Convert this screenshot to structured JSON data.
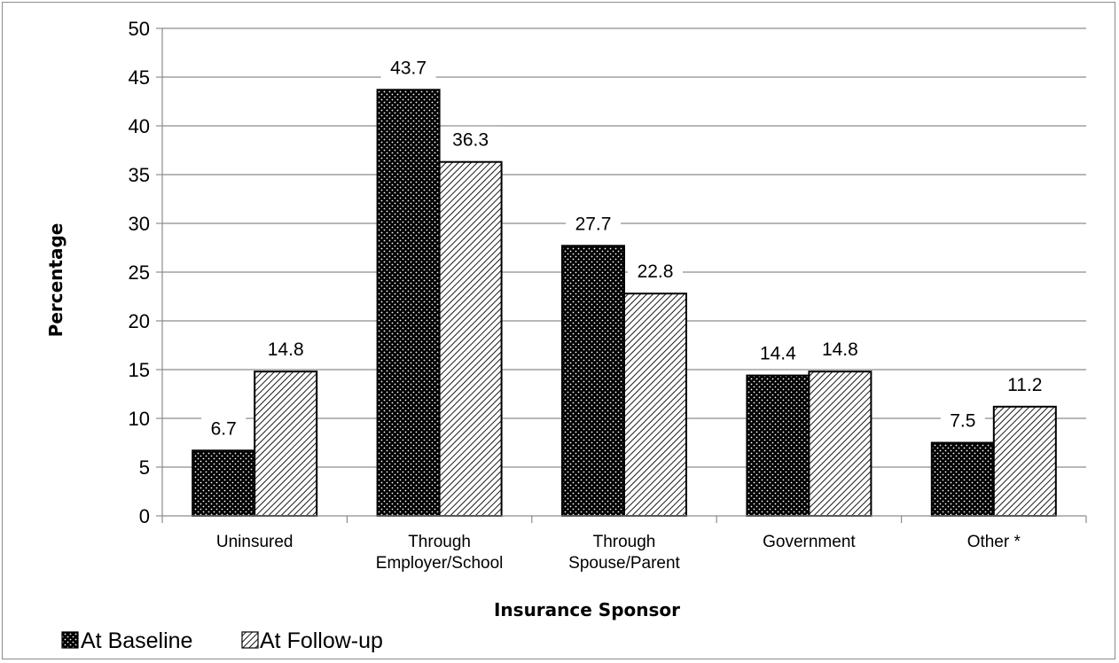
{
  "chart_data": {
    "type": "bar",
    "xlabel": "Insurance Sponsor",
    "ylabel": "Percentage",
    "ylim": [
      0,
      50
    ],
    "yticks": [
      0,
      5,
      10,
      15,
      20,
      25,
      30,
      35,
      40,
      45,
      50
    ],
    "grid": true,
    "legend_position": "bottom-left",
    "categories": [
      [
        "Uninsured"
      ],
      [
        "Through",
        "Employer/School"
      ],
      [
        "Through",
        "Spouse/Parent"
      ],
      [
        "Government"
      ],
      [
        "Other *"
      ]
    ],
    "series": [
      {
        "name": "At Baseline",
        "pattern": "dots",
        "color": "#000000",
        "values": [
          6.7,
          43.7,
          27.7,
          14.4,
          7.5
        ],
        "labels": [
          "6.7",
          "43.7",
          "27.7",
          "14.4",
          "7.5"
        ]
      },
      {
        "name": "At Follow-up",
        "pattern": "diagonal-hatch",
        "color": "#000000",
        "values": [
          14.8,
          36.3,
          22.8,
          14.8,
          11.2
        ],
        "labels": [
          "14.8",
          "36.3",
          "22.8",
          "14.8",
          "11.2"
        ]
      }
    ]
  }
}
